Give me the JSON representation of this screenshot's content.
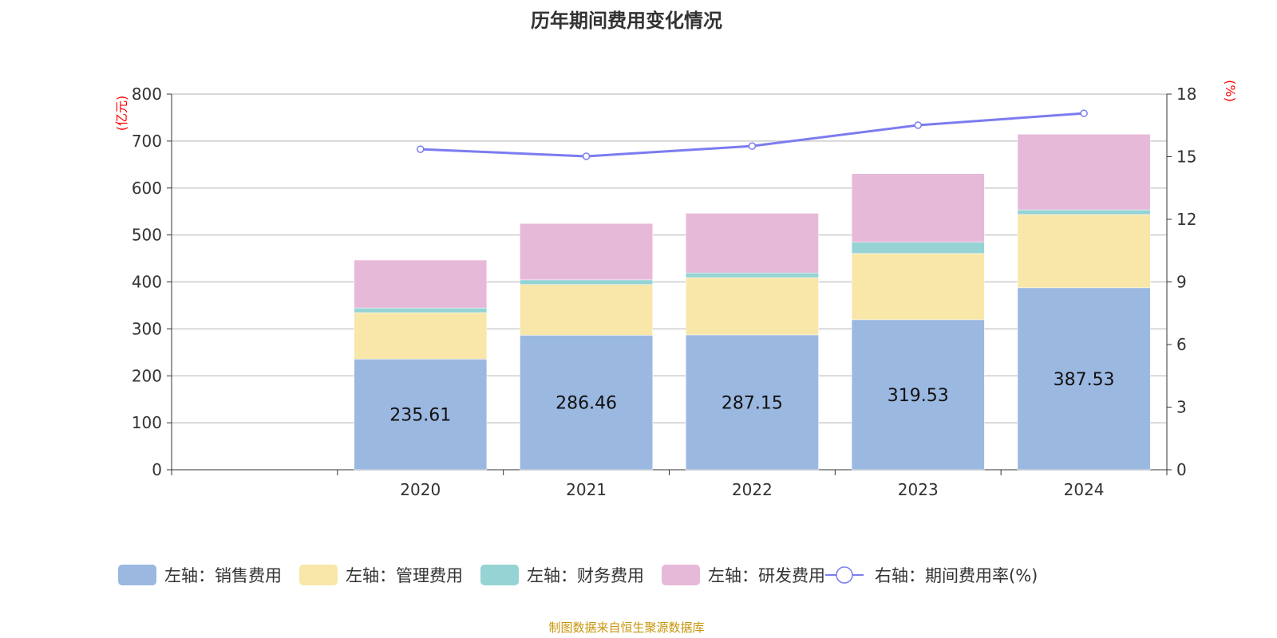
{
  "chart_data": {
    "type": "bar",
    "title": "历年期间费用变化情况",
    "source": "制图数据来自恒生聚源数据库",
    "categories": [
      "",
      "2020",
      "2021",
      "2022",
      "2023",
      "2024"
    ],
    "left_axis": {
      "label": "(亿元)",
      "ylim": [
        0,
        800
      ],
      "ticks": [
        0,
        100,
        200,
        300,
        400,
        500,
        600,
        700,
        800
      ]
    },
    "right_axis": {
      "label": "(%)",
      "ylim": [
        0,
        18
      ],
      "ticks": [
        0,
        3,
        6,
        9,
        12,
        15,
        18
      ]
    },
    "grid": true,
    "legend_placement": "bottom",
    "series": [
      {
        "name": "左轴：销售费用",
        "type": "bar",
        "stack": true,
        "color": "#9bb8e1",
        "values": [
          null,
          235.61,
          286.46,
          287.15,
          319.53,
          387.53
        ],
        "labels": [
          "",
          "235.61",
          "286.46",
          "287.15",
          "319.53",
          "387.53"
        ]
      },
      {
        "name": "左轴：管理费用",
        "type": "bar",
        "stack": true,
        "color": "#f8e7a9",
        "values": [
          null,
          99,
          108,
          122,
          141,
          156
        ]
      },
      {
        "name": "左轴：财务费用",
        "type": "bar",
        "stack": true,
        "color": "#96d3d4",
        "values": [
          null,
          10,
          10,
          10,
          24,
          10
        ]
      },
      {
        "name": "左轴：研发费用",
        "type": "bar",
        "stack": true,
        "color": "#e7b9d8",
        "values": [
          null,
          102,
          120,
          127,
          146,
          161
        ]
      },
      {
        "name": "右轴：期间费用率(%)",
        "type": "line",
        "axis": "right",
        "color": "#7b7cf0",
        "values": [
          null,
          15.36,
          15.02,
          15.51,
          16.51,
          17.08
        ]
      }
    ]
  }
}
